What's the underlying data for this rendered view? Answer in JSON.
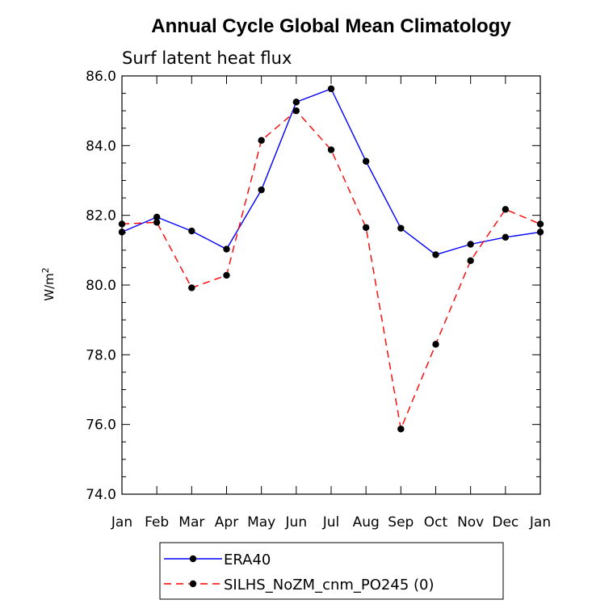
{
  "chart_data": {
    "type": "line",
    "title": "Annual Cycle Global Mean Climatology",
    "subtitle": "Surf latent heat flux",
    "ylabel": "W/m",
    "ylabel_superscript": "2",
    "xlabel": "",
    "categories": [
      "Jan",
      "Feb",
      "Mar",
      "Apr",
      "May",
      "Jun",
      "Jul",
      "Aug",
      "Sep",
      "Oct",
      "Nov",
      "Dec",
      "Jan"
    ],
    "ylim": [
      74.0,
      86.0
    ],
    "yticks": [
      "74.0",
      "76.0",
      "78.0",
      "80.0",
      "82.0",
      "84.0",
      "86.0"
    ],
    "series": [
      {
        "name": "ERA40",
        "color": "#0000ff",
        "dashed": false,
        "values": [
          81.52,
          81.95,
          81.55,
          81.03,
          82.73,
          85.25,
          85.63,
          83.55,
          81.63,
          80.87,
          81.17,
          81.37,
          81.52
        ]
      },
      {
        "name": "SILHS_NoZM_cnm_PO245 (0)",
        "color": "#ff0000",
        "dashed": true,
        "values": [
          81.75,
          81.8,
          79.92,
          80.28,
          84.15,
          85.0,
          83.88,
          81.65,
          75.87,
          78.3,
          80.7,
          82.17,
          81.75
        ]
      }
    ],
    "legend_position": "bottom"
  }
}
